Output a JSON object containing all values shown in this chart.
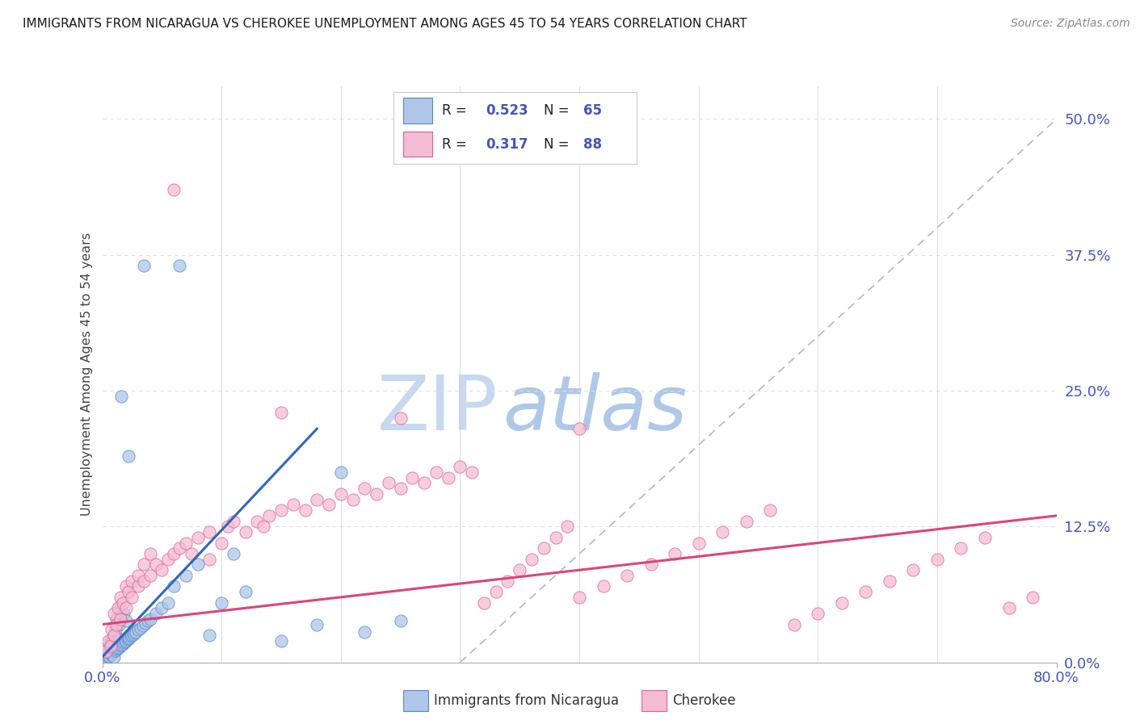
{
  "title": "IMMIGRANTS FROM NICARAGUA VS CHEROKEE UNEMPLOYMENT AMONG AGES 45 TO 54 YEARS CORRELATION CHART",
  "source": "Source: ZipAtlas.com",
  "ylabel": "Unemployment Among Ages 45 to 54 years",
  "ytick_values": [
    0.0,
    12.5,
    25.0,
    37.5,
    50.0
  ],
  "xlim": [
    0.0,
    80.0
  ],
  "ylim": [
    0.0,
    53.0
  ],
  "color_blue_fill": "#aec6e8",
  "color_blue_edge": "#5588cc",
  "color_pink_fill": "#f4bcd4",
  "color_pink_edge": "#e0608a",
  "color_blue_line": "#3366bb",
  "color_pink_line": "#dd4477",
  "color_refline": "#b0b8c8",
  "color_title": "#1a1a1a",
  "color_source": "#888888",
  "color_watermark_zip": "#c8d8f0",
  "color_watermark_atlas": "#b0c8e8",
  "color_tick": "#4455bb",
  "color_grid": "#e0e0e0",
  "background_color": "#ffffff",
  "blue_line_x": [
    0.0,
    18.0
  ],
  "blue_line_y": [
    0.5,
    21.5
  ],
  "pink_line_x": [
    0.0,
    80.0
  ],
  "pink_line_y": [
    3.5,
    13.5
  ],
  "ref_line_x": [
    30.0,
    80.0
  ],
  "ref_line_y": [
    0.0,
    50.0
  ],
  "blue_x": [
    0.2,
    0.3,
    0.4,
    0.5,
    0.5,
    0.6,
    0.6,
    0.7,
    0.7,
    0.8,
    0.8,
    0.9,
    1.0,
    1.0,
    1.0,
    1.1,
    1.1,
    1.2,
    1.2,
    1.3,
    1.3,
    1.4,
    1.4,
    1.5,
    1.5,
    1.6,
    1.7,
    1.8,
    1.8,
    1.9,
    2.0,
    2.0,
    2.1,
    2.2,
    2.3,
    2.4,
    2.5,
    2.6,
    2.7,
    2.8,
    3.0,
    3.2,
    3.4,
    3.6,
    3.8,
    4.0,
    4.5,
    5.0,
    5.5,
    6.0,
    7.0,
    8.0,
    9.0,
    10.0,
    11.0,
    12.0,
    15.0,
    18.0,
    20.0,
    22.0,
    25.0,
    3.5,
    6.5,
    1.6,
    2.2
  ],
  "blue_y": [
    0.3,
    0.5,
    0.4,
    0.5,
    1.0,
    0.6,
    1.5,
    0.7,
    2.0,
    0.8,
    1.8,
    1.0,
    0.5,
    1.2,
    2.5,
    1.1,
    3.0,
    1.2,
    4.0,
    1.3,
    2.2,
    1.4,
    3.5,
    1.5,
    5.0,
    1.6,
    1.7,
    1.8,
    4.5,
    1.9,
    2.0,
    3.8,
    2.1,
    2.2,
    2.3,
    2.4,
    2.5,
    2.6,
    2.7,
    2.8,
    3.0,
    3.2,
    3.4,
    3.6,
    3.8,
    4.0,
    4.5,
    5.0,
    5.5,
    7.0,
    8.0,
    9.0,
    2.5,
    5.5,
    10.0,
    6.5,
    2.0,
    3.5,
    17.5,
    2.8,
    3.8,
    36.5,
    36.5,
    24.5,
    19.0
  ],
  "pink_x": [
    0.3,
    0.5,
    0.7,
    0.8,
    1.0,
    1.0,
    1.2,
    1.3,
    1.5,
    1.5,
    1.7,
    2.0,
    2.0,
    2.2,
    2.5,
    2.5,
    3.0,
    3.0,
    3.5,
    3.5,
    4.0,
    4.0,
    4.5,
    5.0,
    5.5,
    6.0,
    6.5,
    7.0,
    7.5,
    8.0,
    9.0,
    9.0,
    10.0,
    10.5,
    11.0,
    12.0,
    13.0,
    13.5,
    14.0,
    15.0,
    16.0,
    17.0,
    18.0,
    19.0,
    20.0,
    21.0,
    22.0,
    23.0,
    24.0,
    25.0,
    26.0,
    27.0,
    28.0,
    29.0,
    30.0,
    31.0,
    32.0,
    33.0,
    34.0,
    35.0,
    36.0,
    37.0,
    38.0,
    39.0,
    40.0,
    42.0,
    44.0,
    46.0,
    48.0,
    50.0,
    52.0,
    54.0,
    56.0,
    58.0,
    60.0,
    62.0,
    64.0,
    66.0,
    68.0,
    70.0,
    72.0,
    74.0,
    76.0,
    78.0,
    6.0,
    15.0,
    25.0,
    40.0
  ],
  "pink_y": [
    1.0,
    2.0,
    1.5,
    3.0,
    2.5,
    4.5,
    3.5,
    5.0,
    4.0,
    6.0,
    5.5,
    5.0,
    7.0,
    6.5,
    6.0,
    7.5,
    7.0,
    8.0,
    7.5,
    9.0,
    8.0,
    10.0,
    9.0,
    8.5,
    9.5,
    10.0,
    10.5,
    11.0,
    10.0,
    11.5,
    9.5,
    12.0,
    11.0,
    12.5,
    13.0,
    12.0,
    13.0,
    12.5,
    13.5,
    14.0,
    14.5,
    14.0,
    15.0,
    14.5,
    15.5,
    15.0,
    16.0,
    15.5,
    16.5,
    16.0,
    17.0,
    16.5,
    17.5,
    17.0,
    18.0,
    17.5,
    5.5,
    6.5,
    7.5,
    8.5,
    9.5,
    10.5,
    11.5,
    12.5,
    6.0,
    7.0,
    8.0,
    9.0,
    10.0,
    11.0,
    12.0,
    13.0,
    14.0,
    3.5,
    4.5,
    5.5,
    6.5,
    7.5,
    8.5,
    9.5,
    10.5,
    11.5,
    5.0,
    6.0,
    43.5,
    23.0,
    22.5,
    21.5
  ]
}
